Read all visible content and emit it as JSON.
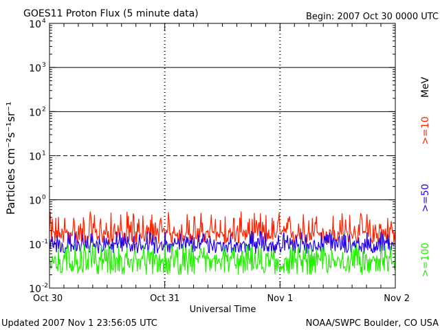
{
  "title": "GOES11 Proton Flux (5 minute data)",
  "begin": "Begin: 2007 Oct 30 0000 UTC",
  "updated": "Updated 2007 Nov  1 23:56:05 UTC",
  "credit": "NOAA/SWPC Boulder, CO USA",
  "chart_data": {
    "type": "line",
    "title": "GOES11 Proton Flux (5 minute data)",
    "xlabel": "Universal Time",
    "ylabel": "Particles cm⁻²s⁻¹sr⁻¹",
    "yscale": "log",
    "ylim": [
      0.01,
      10000
    ],
    "x_ticks": [
      "Oct 30",
      "Oct 31",
      "Nov 1",
      "Nov 2"
    ],
    "xlim": [
      "2007-10-30T00:00",
      "2007-11-02T00:00"
    ],
    "y_ticks": [
      {
        "value": 0.01,
        "base": "10",
        "exp": "-2"
      },
      {
        "value": 0.1,
        "base": "10",
        "exp": "-1"
      },
      {
        "value": 1,
        "base": "10",
        "exp": "0"
      },
      {
        "value": 10,
        "base": "10",
        "exp": "1"
      },
      {
        "value": 100,
        "base": "10",
        "exp": "2"
      },
      {
        "value": 1000,
        "base": "10",
        "exp": "3"
      },
      {
        "value": 10000,
        "base": "10",
        "exp": "4"
      }
    ],
    "threshold_lines": [
      {
        "value": 1,
        "style": "solid"
      },
      {
        "value": 10,
        "style": "dashed"
      },
      {
        "value": 100,
        "style": "solid"
      },
      {
        "value": 1000,
        "style": "solid"
      }
    ],
    "legend_unit": "MeV",
    "series": [
      {
        "name": ">=10",
        "color": "#ff2200",
        "typical": 0.18,
        "min": 0.1,
        "max": 0.55
      },
      {
        "name": ">=50",
        "color": "#2200ee",
        "typical": 0.1,
        "min": 0.06,
        "max": 0.2
      },
      {
        "name": ">=100",
        "color": "#22ee00",
        "typical": 0.045,
        "min": 0.02,
        "max": 0.1
      }
    ]
  }
}
